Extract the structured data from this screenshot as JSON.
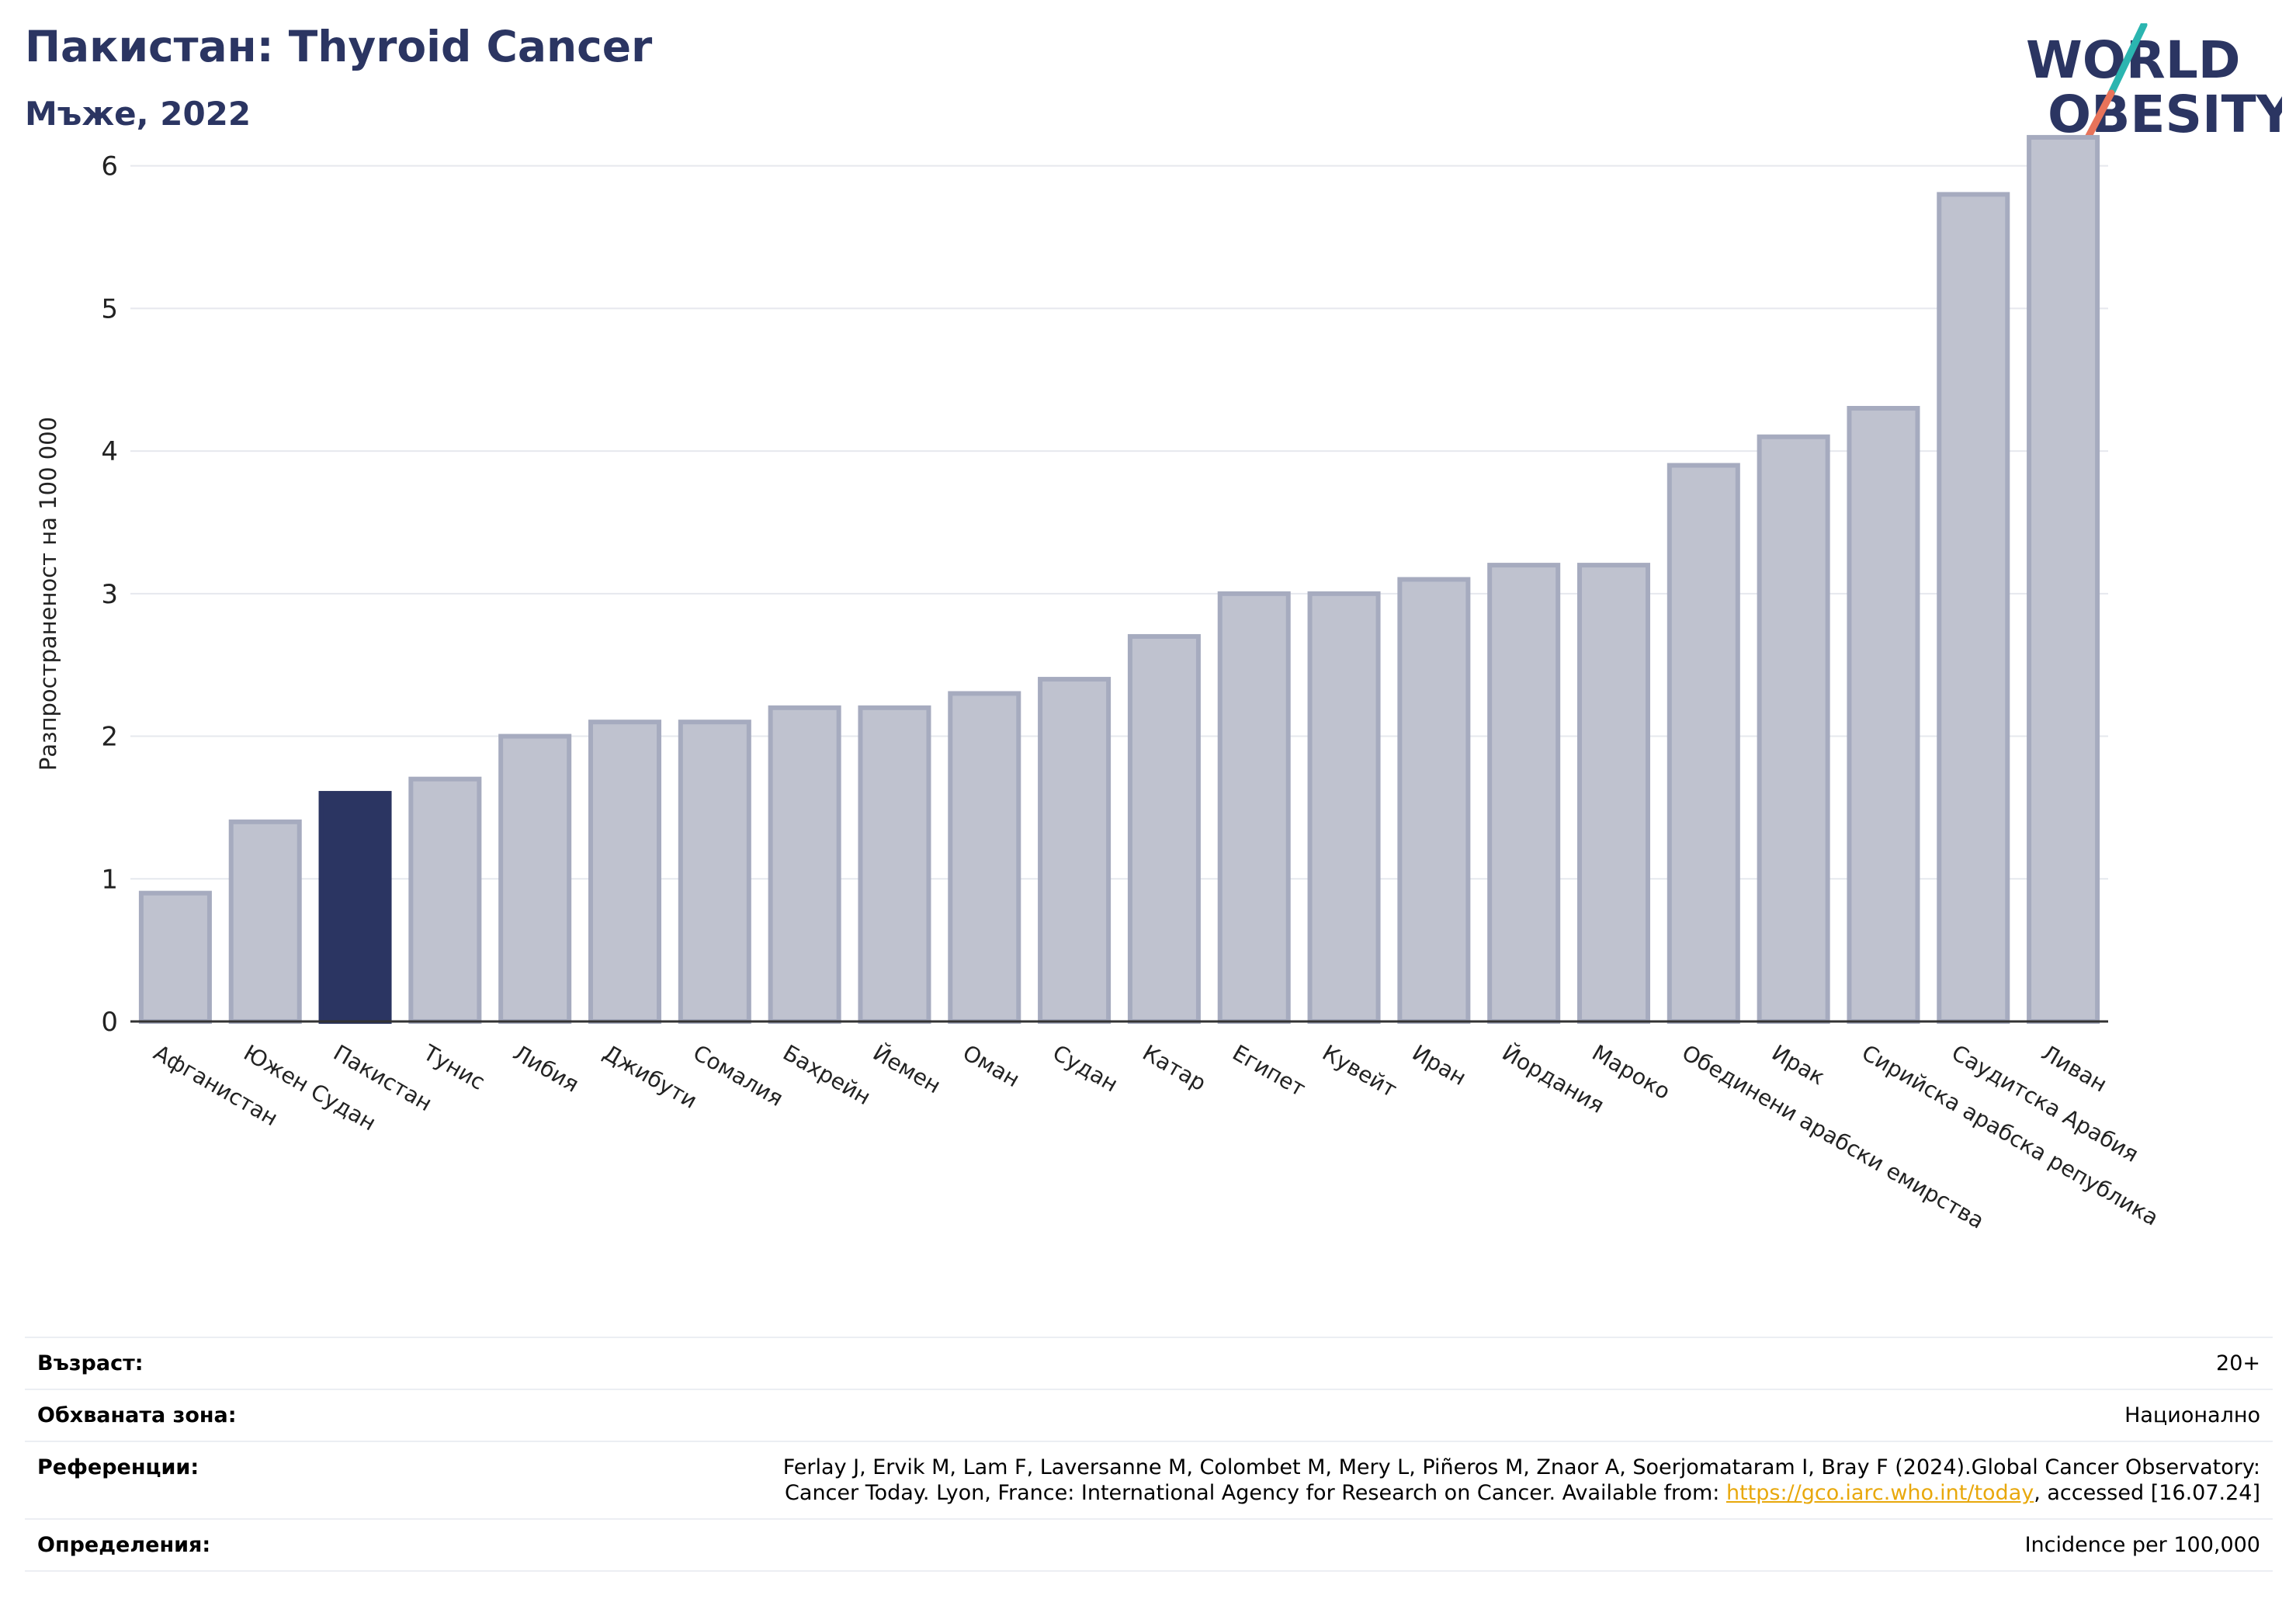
{
  "header": {
    "title": "Пакистан: Thyroid Cancer",
    "subtitle": "Мъже, 2022"
  },
  "logo": {
    "line1": "WORLD",
    "line2": "OBESITY",
    "text_color": "#2b3562",
    "slash_colors": [
      "#2bb5b0",
      "#e8735a"
    ]
  },
  "chart_data": {
    "type": "bar",
    "ylabel": "Разпространеност  на 100 000",
    "ylim": [
      0,
      6.45
    ],
    "yticks": [
      0,
      1,
      2,
      3,
      4,
      5,
      6
    ],
    "grid": true,
    "highlight": "Пакистан",
    "colors": {
      "bar": "#bfc2cf",
      "bar_edge": "#a6abbf",
      "highlight": "#2b3562"
    },
    "categories": [
      "Афганистан",
      "Южен Судан",
      "Пакистан",
      "Тунис",
      "Либия",
      "Джибути",
      "Сомалия",
      "Бахрейн",
      "Йемен",
      "Оман",
      "Судан",
      "Катар",
      "Египет",
      "Кувейт",
      "Иран",
      "Йордания",
      "Мароко",
      "Обединени арабски емирства",
      "Ирак",
      "Сирийска арабска република",
      "Саудитска Арабия",
      "Ливан"
    ],
    "values": [
      0.9,
      1.4,
      1.6,
      1.7,
      2.0,
      2.1,
      2.1,
      2.2,
      2.2,
      2.3,
      2.4,
      2.7,
      3.0,
      3.0,
      3.1,
      3.2,
      3.2,
      3.9,
      4.1,
      4.3,
      5.8,
      6.2
    ]
  },
  "info": {
    "age_label": "Възраст:",
    "age_value": "20+",
    "area_label": "Обхваната зона:",
    "area_value": "Национално",
    "ref_label": "Референции:",
    "ref_text_1": "Ferlay J, Ervik M, Lam F, Laversanne M, Colombet M, Mery L, Piñeros M, Znaor A, Soerjomataram I, Bray F (2024).Global Cancer Observatory:",
    "ref_text_2": "Cancer Today. Lyon, France: International Agency for Research on Cancer. Available from: ",
    "ref_link": "https://gco.iarc.who.int/today",
    "ref_text_3": ", accessed [16.07.24]",
    "def_label": "Определения:",
    "def_value": "Incidence per 100,000"
  }
}
